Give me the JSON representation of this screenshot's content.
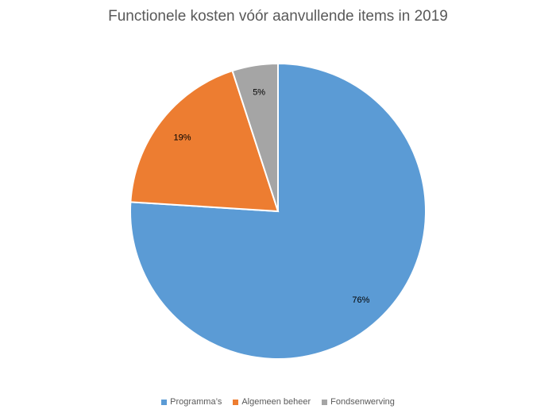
{
  "chart_data": {
    "type": "pie",
    "title": "Functionele kosten vóór aanvullende items in 2019",
    "categories": [
      "Programma’s",
      "Algemeen beheer",
      "Fondsenwerving"
    ],
    "values": [
      76,
      19,
      5
    ],
    "labels": [
      "76%",
      "19%",
      "5%"
    ],
    "colors": [
      "#5B9BD5",
      "#ED7D31",
      "#A5A5A5"
    ],
    "start_angle_deg": 0,
    "direction": "clockwise",
    "legend_position": "bottom"
  }
}
